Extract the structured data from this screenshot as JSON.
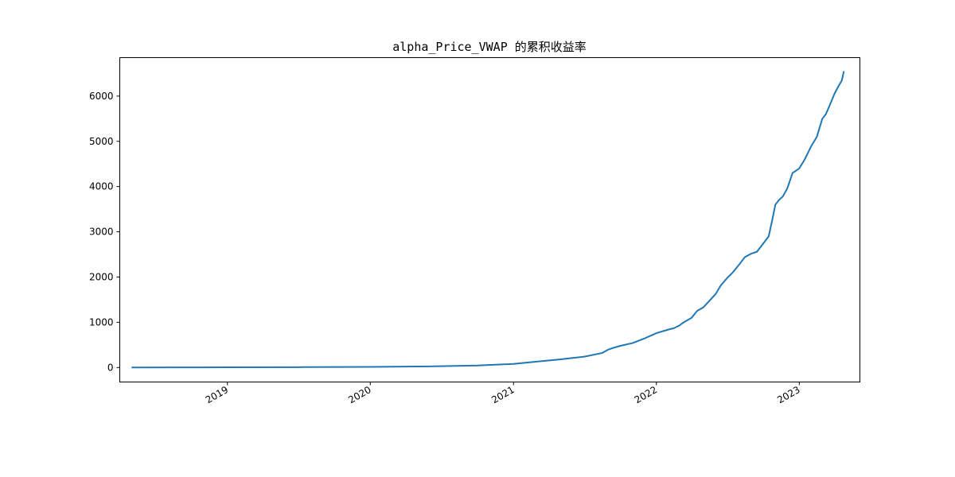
{
  "chart_data": {
    "type": "line",
    "title": "alpha_Price_VWAP 的累积收益率",
    "xlabel": "",
    "ylabel": "",
    "x_range": [
      "2018-04-01",
      "2023-06-05"
    ],
    "ylim": [
      -320,
      6850
    ],
    "y_ticks": [
      0,
      1000,
      2000,
      3000,
      4000,
      5000,
      6000
    ],
    "x_ticks": [
      {
        "date": "2019-01-01",
        "label": "2019"
      },
      {
        "date": "2020-01-01",
        "label": "2020"
      },
      {
        "date": "2021-01-01",
        "label": "2021"
      },
      {
        "date": "2022-01-01",
        "label": "2022"
      },
      {
        "date": "2023-01-01",
        "label": "2023"
      }
    ],
    "grid": false,
    "legend": "none",
    "series": [
      {
        "color": "#1f77b4",
        "x": [
          "2018-05-01",
          "2018-09-01",
          "2019-01-01",
          "2019-07-01",
          "2020-01-01",
          "2020-06-01",
          "2020-10-01",
          "2021-01-01",
          "2021-03-01",
          "2021-05-01",
          "2021-07-01",
          "2021-08-15",
          "2021-09-01",
          "2021-09-15",
          "2021-10-01",
          "2021-11-01",
          "2021-12-01",
          "2022-01-01",
          "2022-02-01",
          "2022-02-15",
          "2022-03-01",
          "2022-03-10",
          "2022-04-01",
          "2022-04-15",
          "2022-05-01",
          "2022-05-15",
          "2022-06-01",
          "2022-06-15",
          "2022-07-01",
          "2022-07-15",
          "2022-08-01",
          "2022-08-15",
          "2022-09-01",
          "2022-09-15",
          "2022-10-01",
          "2022-10-15",
          "2022-10-25",
          "2022-11-01",
          "2022-11-10",
          "2022-11-20",
          "2022-12-01",
          "2022-12-15",
          "2023-01-01",
          "2023-01-15",
          "2023-02-01",
          "2023-02-15",
          "2023-03-01",
          "2023-03-10",
          "2023-03-20",
          "2023-04-01",
          "2023-04-10",
          "2023-04-20",
          "2023-04-25"
        ],
        "y": [
          0,
          2,
          5,
          8,
          15,
          25,
          45,
          80,
          130,
          180,
          240,
          320,
          400,
          440,
          480,
          540,
          640,
          760,
          840,
          870,
          930,
          990,
          1100,
          1250,
          1330,
          1460,
          1620,
          1820,
          1980,
          2100,
          2280,
          2440,
          2520,
          2560,
          2740,
          2900,
          3300,
          3600,
          3700,
          3780,
          3950,
          4300,
          4400,
          4600,
          4900,
          5100,
          5500,
          5600,
          5800,
          6050,
          6200,
          6350,
          6550
        ]
      }
    ]
  }
}
